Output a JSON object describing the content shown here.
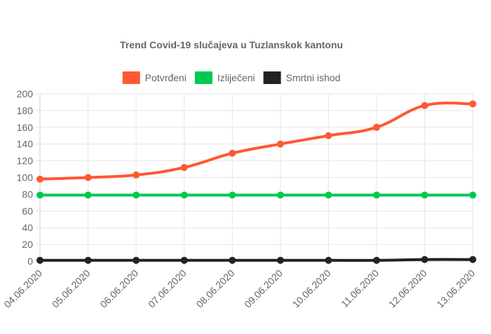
{
  "chart_data": {
    "type": "line",
    "title": "Trend Covid-19 slučajeva u Tuzlanskok kantonu",
    "x": [
      "04.06.2020",
      "05.06.2020",
      "06.06.2020",
      "07.06.2020",
      "08.06.2020",
      "09.06.2020",
      "10.06.2020",
      "11.06.2020",
      "12.06.2020",
      "13.06.2020"
    ],
    "ylim": [
      0,
      200
    ],
    "yticks": [
      0,
      20,
      40,
      60,
      80,
      100,
      120,
      140,
      160,
      180,
      200
    ],
    "grid": true,
    "legend_position": "top",
    "series": [
      {
        "name": "Potvrđeni",
        "color": "#ff5733",
        "values": [
          98,
          100,
          103,
          112,
          129,
          140,
          150,
          160,
          186,
          188
        ]
      },
      {
        "name": "Izliječeni",
        "color": "#00c853",
        "values": [
          79,
          79,
          79,
          79,
          79,
          79,
          79,
          79,
          79,
          79
        ]
      },
      {
        "name": "Smrtni ishod",
        "color": "#222222",
        "values": [
          1,
          1,
          1,
          1,
          1,
          1,
          1,
          1,
          2,
          2
        ]
      }
    ]
  }
}
